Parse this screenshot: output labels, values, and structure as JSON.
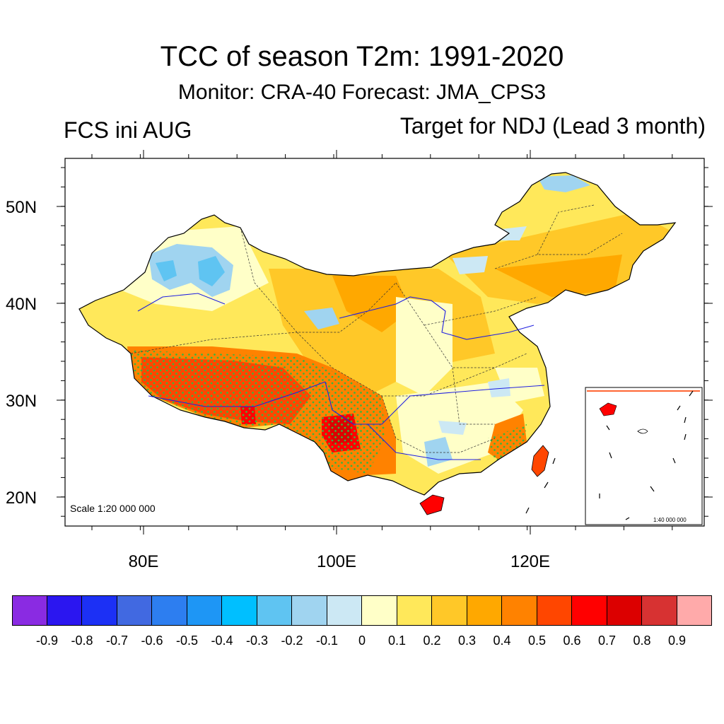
{
  "title": "TCC of season T2m: 1991-2020",
  "subtitle": "Monitor: CRA-40   Forecast: JMA_CPS3",
  "left_label": "FCS ini AUG",
  "right_label": "Target for NDJ (Lead 3 month)",
  "map": {
    "lat_labels": [
      "50N",
      "40N",
      "30N",
      "20N"
    ],
    "lon_labels": [
      "80E",
      "100E",
      "120E"
    ],
    "scale_text": "Scale 1:20 000 000",
    "inset_scale_text": "1:40 000 000"
  },
  "colorbar": {
    "colors": [
      "#8a2be2",
      "#2b16f0",
      "#1c30f5",
      "#4169e1",
      "#2d7ef0",
      "#1e96f5",
      "#00bfff",
      "#5fc4f2",
      "#a0d4f0",
      "#cce8f4",
      "#ffffc8",
      "#ffe85a",
      "#ffc828",
      "#ffa800",
      "#ff8200",
      "#ff4600",
      "#ff0000",
      "#dc0000",
      "#d73232",
      "#ffaaaa"
    ],
    "labels": [
      "-0.9",
      "-0.8",
      "-0.7",
      "-0.6",
      "-0.5",
      "-0.4",
      "-0.3",
      "-0.2",
      "-0.1",
      "0",
      "0.1",
      "0.2",
      "0.3",
      "0.4",
      "0.5",
      "0.6",
      "0.7",
      "0.8",
      "0.9"
    ]
  }
}
